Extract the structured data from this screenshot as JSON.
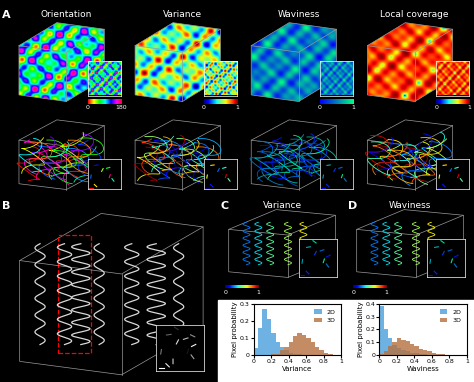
{
  "panel_a": {
    "label": "A",
    "columns": [
      {
        "title": "Orientation",
        "colorbar": {
          "range": [
            0,
            180
          ],
          "ticks": [
            0,
            180
          ]
        }
      },
      {
        "title": "Variance",
        "colorbar": {
          "range": [
            0,
            1
          ],
          "ticks": [
            0,
            1
          ]
        }
      },
      {
        "title": "Waviness",
        "colorbar": {
          "range": [
            0,
            1
          ],
          "ticks": [
            0,
            1
          ]
        }
      },
      {
        "title": "Local coverage",
        "colorbar": {
          "range": [
            0,
            1
          ],
          "ticks": [
            0,
            1
          ]
        }
      }
    ]
  },
  "panel_b": {
    "label": "B"
  },
  "chart_data": [
    {
      "type": "histogram",
      "panel": "C",
      "title": "Variance",
      "colorbar": {
        "range": [
          0,
          1
        ],
        "ticks": [
          0,
          1
        ]
      },
      "xlabel": "Variance",
      "ylabel": "Pixel probability",
      "bins": [
        0,
        0.05,
        0.1,
        0.15,
        0.2,
        0.25,
        0.3,
        0.35,
        0.4,
        0.45,
        0.5,
        0.55,
        0.6,
        0.65,
        0.7,
        0.75,
        0.8,
        0.85,
        0.9,
        0.95,
        1.0
      ],
      "series": [
        {
          "name": "2D",
          "color": "#4a9fdc",
          "values": [
            0.04,
            0.16,
            0.27,
            0.21,
            0.13,
            0.08,
            0.05,
            0.03,
            0.015,
            0.01,
            0.005,
            0,
            0,
            0,
            0,
            0,
            0,
            0,
            0,
            0
          ]
        },
        {
          "name": "3D",
          "color": "#b5703e",
          "values": [
            0,
            0,
            0,
            0,
            0.005,
            0.01,
            0.03,
            0.05,
            0.08,
            0.11,
            0.13,
            0.12,
            0.1,
            0.08,
            0.05,
            0.03,
            0.015,
            0.005,
            0,
            0
          ]
        }
      ],
      "xlim": [
        0,
        1
      ],
      "ylim": [
        0,
        0.3
      ],
      "xticks": [
        0,
        0.2,
        0.4,
        0.6,
        0.8,
        1
      ],
      "yticks": [
        0,
        0.1,
        0.2,
        0.3
      ],
      "legend": "upper right"
    },
    {
      "type": "histogram",
      "panel": "D",
      "title": "Waviness",
      "colorbar": {
        "range": [
          0,
          1
        ],
        "ticks": [
          0,
          1
        ]
      },
      "xlabel": "Waviness",
      "ylabel": "Pixel probability",
      "bins": [
        0,
        0.05,
        0.1,
        0.15,
        0.2,
        0.25,
        0.3,
        0.35,
        0.4,
        0.45,
        0.5,
        0.55,
        0.6,
        0.65,
        0.7,
        0.75,
        0.8,
        0.85,
        0.9,
        0.95,
        1.0
      ],
      "series": [
        {
          "name": "2D",
          "color": "#4a9fdc",
          "values": [
            0.38,
            0.2,
            0.13,
            0.08,
            0.06,
            0.04,
            0.03,
            0.02,
            0.015,
            0.01,
            0.01,
            0.005,
            0,
            0,
            0,
            0,
            0,
            0,
            0,
            0
          ]
        },
        {
          "name": "3D",
          "color": "#b5703e",
          "values": [
            0.01,
            0.03,
            0.07,
            0.1,
            0.13,
            0.12,
            0.11,
            0.09,
            0.07,
            0.05,
            0.04,
            0.03,
            0.02,
            0.01,
            0.01,
            0.005,
            0,
            0,
            0,
            0
          ]
        }
      ],
      "xlim": [
        0,
        1
      ],
      "ylim": [
        0,
        0.4
      ],
      "xticks": [
        0,
        0.2,
        0.4,
        0.6,
        0.8,
        1
      ],
      "yticks": [
        0,
        0.1,
        0.2,
        0.3,
        0.4
      ],
      "legend": "upper right"
    }
  ]
}
